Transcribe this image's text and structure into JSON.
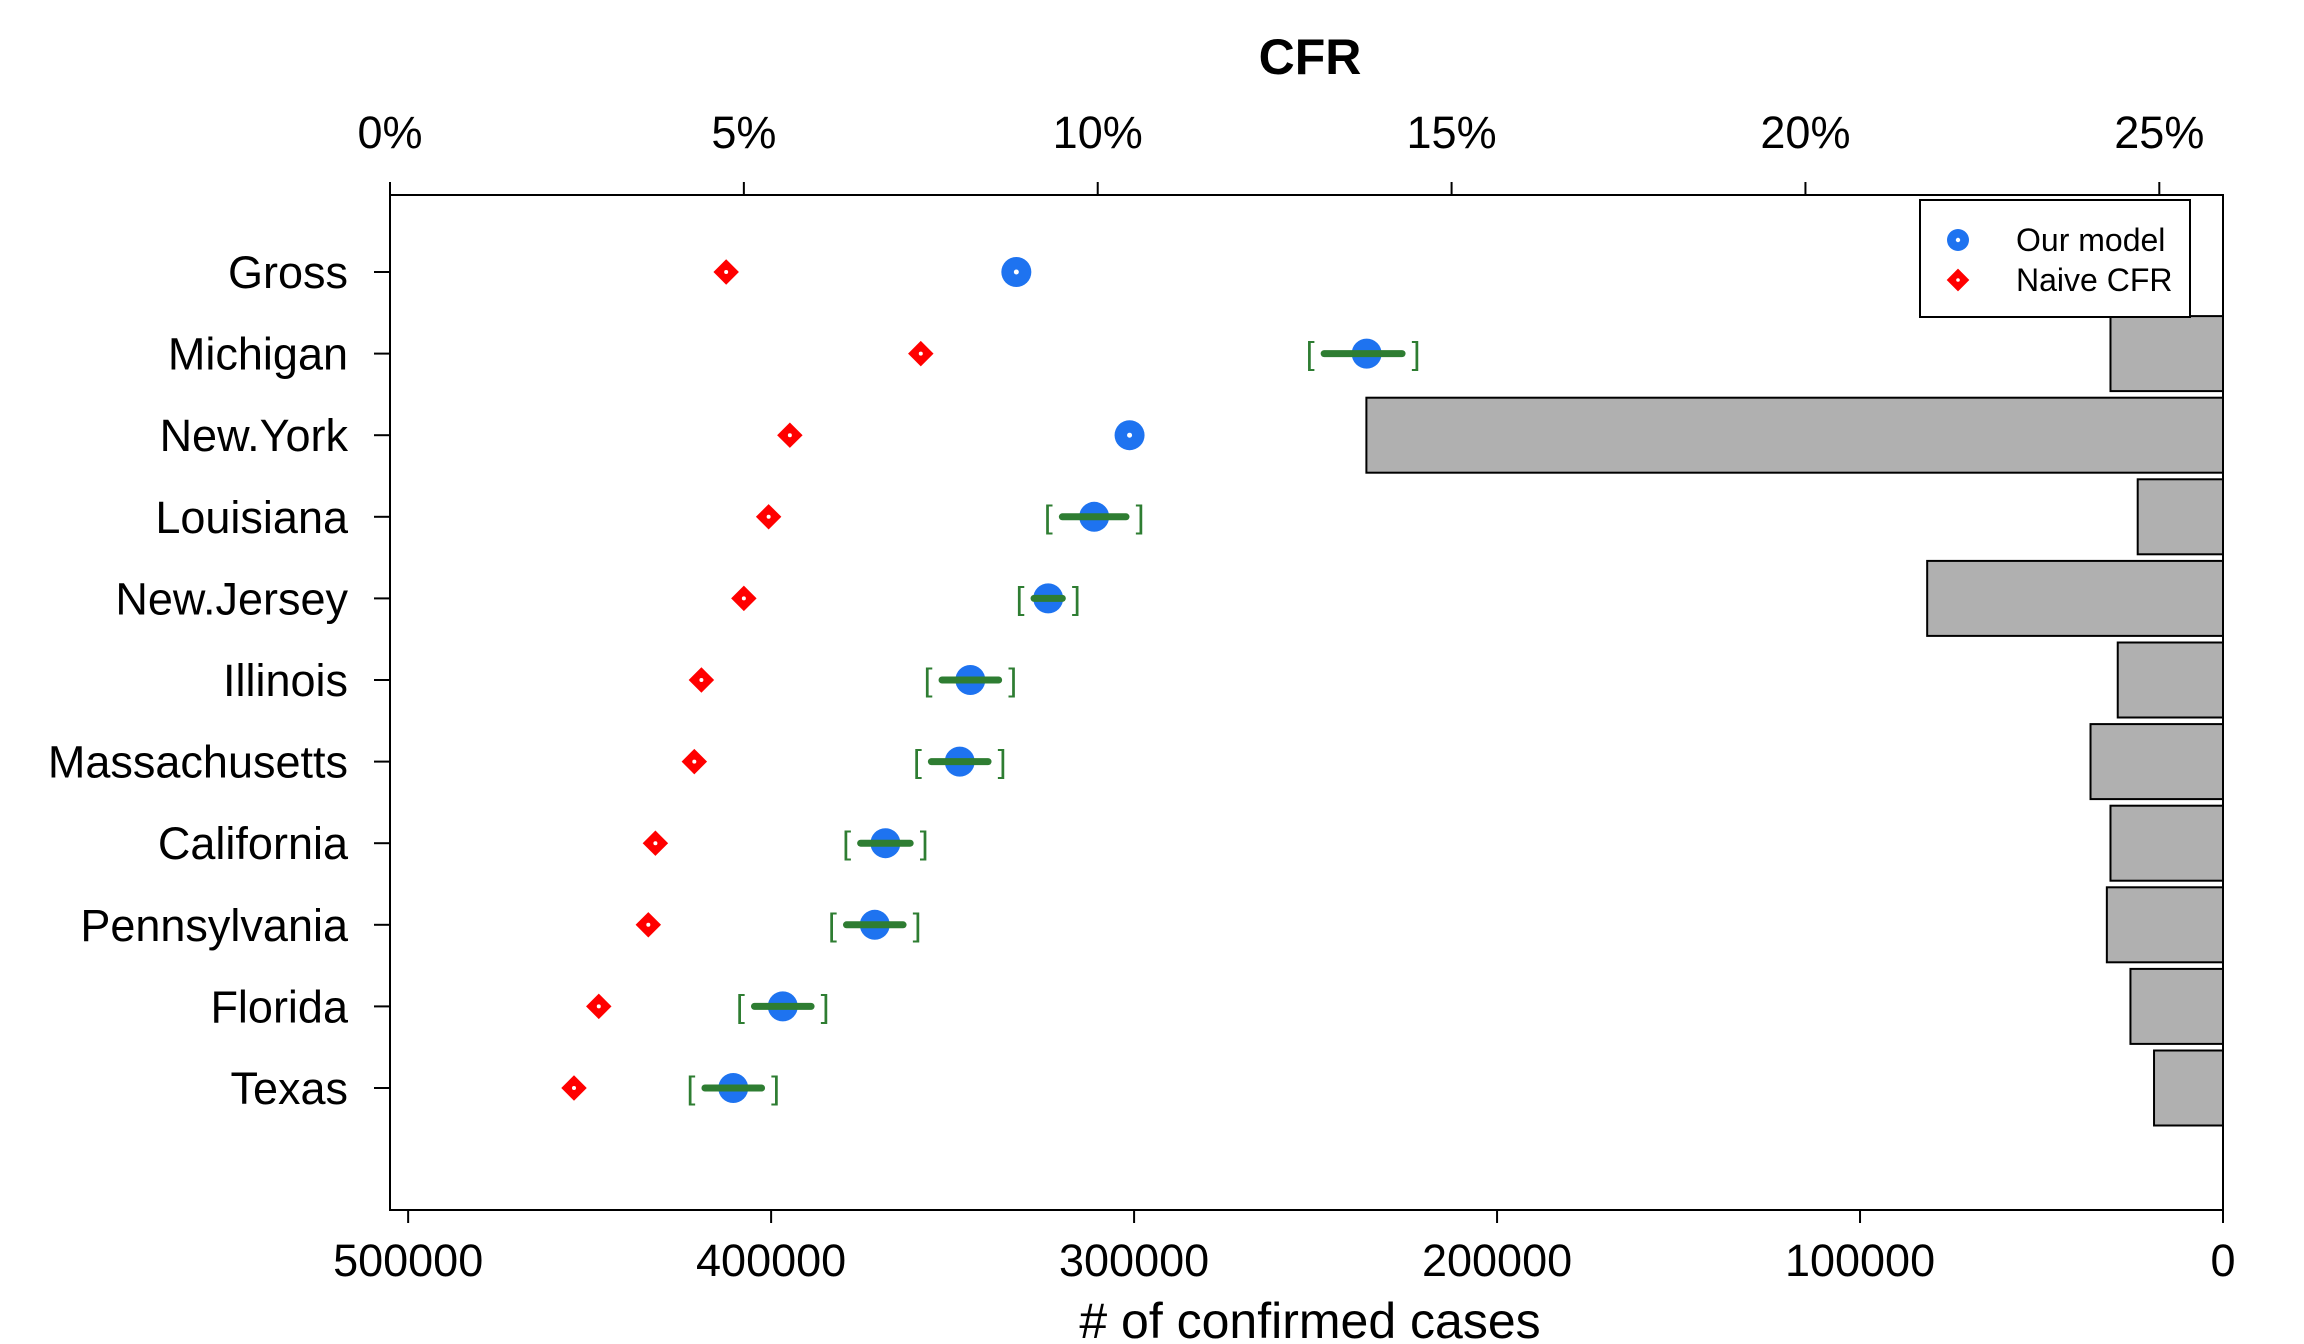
{
  "chart_data": {
    "type": "dot-and-bar",
    "title": "CFR",
    "top_axis": {
      "label": "CFR",
      "range": [
        0,
        25.9
      ],
      "ticks": [
        0,
        5,
        10,
        15,
        20,
        25
      ],
      "tick_labels": [
        "0%",
        "5%",
        "10%",
        "15%",
        "20%",
        "25%"
      ]
    },
    "bottom_axis": {
      "label": "# of confirmed cases",
      "range": [
        505000,
        0
      ],
      "reversed": true,
      "ticks": [
        500000,
        400000,
        300000,
        200000,
        100000,
        0
      ],
      "tick_labels": [
        "500000",
        "400000",
        "300000",
        "200000",
        "100000",
        "0"
      ]
    },
    "categories": [
      "Gross",
      "Michigan",
      "New.York",
      "Louisiana",
      "New.Jersey",
      "Illinois",
      "Massachusetts",
      "California",
      "Pennsylvania",
      "Florida",
      "Texas"
    ],
    "series": [
      {
        "name": "Our model",
        "color": "#1e73f0",
        "marker": "circle",
        "values": [
          8.85,
          13.8,
          10.45,
          9.95,
          9.3,
          8.2,
          8.05,
          7.0,
          6.85,
          5.55,
          4.85
        ],
        "ci_low": [
          8.8,
          13.2,
          10.4,
          9.5,
          9.1,
          7.8,
          7.65,
          6.65,
          6.45,
          5.15,
          4.45
        ],
        "ci_high": [
          8.9,
          14.3,
          10.55,
          10.4,
          9.5,
          8.6,
          8.45,
          7.35,
          7.25,
          5.95,
          5.25
        ]
      },
      {
        "name": "Naive CFR",
        "color": "#ff0000",
        "marker": "diamond",
        "values": [
          4.75,
          7.5,
          5.65,
          5.35,
          5.0,
          4.4,
          4.3,
          3.75,
          3.65,
          2.95,
          2.6
        ]
      }
    ],
    "confirmed_cases": [
      null,
      31000,
      236000,
      23500,
      81500,
      29000,
      36500,
      31000,
      32000,
      25500,
      19000
    ],
    "bar_color": "#b0b0b0",
    "ci_color": "#2e7d32",
    "legend_position": "top-right",
    "grid": false
  }
}
